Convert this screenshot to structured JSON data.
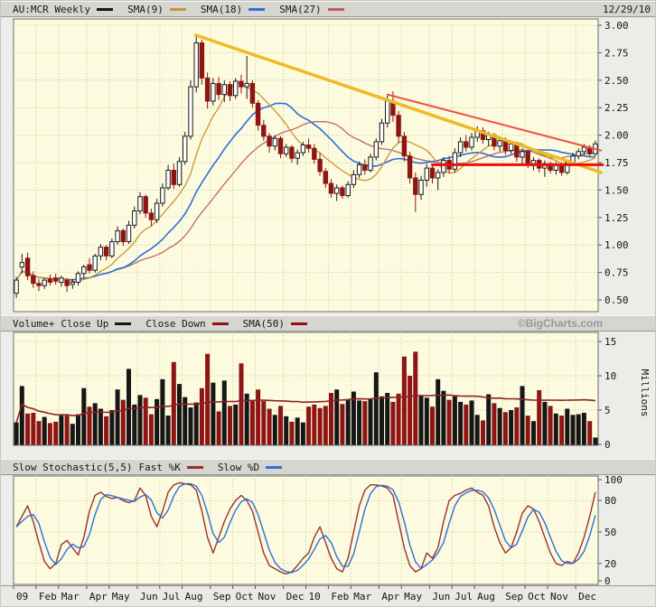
{
  "header": {
    "date": "12/29/10",
    "legend": [
      {
        "label": "AU:MCR Weekly",
        "color": "#161616"
      },
      {
        "label": "SMA(9)",
        "color": "#c89435"
      },
      {
        "label": "SMA(18)",
        "color": "#2e6fd8"
      },
      {
        "label": "SMA(27)",
        "color": "#c25a5a"
      }
    ]
  },
  "volume_header": {
    "legend": [
      {
        "label": "Volume+"
      },
      {
        "label": "Close Up",
        "color": "#161616"
      },
      {
        "label": "Close Down",
        "color": "#941111"
      },
      {
        "label": "SMA(50)",
        "color": "#941111"
      }
    ],
    "watermark": "©BigCharts.com"
  },
  "stoch_header": {
    "legend": [
      {
        "label": "Slow Stochastic(5,5)"
      },
      {
        "label": "Fast %K",
        "color": "#993030"
      },
      {
        "label": "Slow %D",
        "color": "#2e6fd8"
      }
    ]
  },
  "axes": {
    "price_ticks": [
      "3.00",
      "2.75",
      "2.50",
      "2.25",
      "2.00",
      "1.75",
      "1.50",
      "1.25",
      "1.00",
      "0.75",
      "0.50"
    ],
    "volume_ticks": [
      "15",
      "10",
      "5",
      "0"
    ],
    "volume_unit": "Millions",
    "stoch_ticks": [
      "100",
      "80",
      "50",
      "20",
      "0"
    ],
    "stoch_gridlines": [
      80,
      50,
      20
    ],
    "volume_gridlines": [
      15,
      10,
      5
    ],
    "months": [
      {
        "label": "09",
        "week": 0
      },
      {
        "label": "Feb",
        "week": 4
      },
      {
        "label": "Mar",
        "week": 8
      },
      {
        "label": "Apr",
        "week": 13
      },
      {
        "label": "May",
        "week": 17
      },
      {
        "label": "Jun",
        "week": 22
      },
      {
        "label": "Jul",
        "week": 26
      },
      {
        "label": "Aug",
        "week": 30
      },
      {
        "label": "Sep",
        "week": 35
      },
      {
        "label": "Oct",
        "week": 39
      },
      {
        "label": "Nov",
        "week": 43
      },
      {
        "label": "Dec",
        "week": 48
      },
      {
        "label": "10",
        "week": 52
      },
      {
        "label": "Feb",
        "week": 56
      },
      {
        "label": "Mar",
        "week": 60
      },
      {
        "label": "Apr",
        "week": 65
      },
      {
        "label": "May",
        "week": 69
      },
      {
        "label": "Jun",
        "week": 74
      },
      {
        "label": "Jul",
        "week": 78
      },
      {
        "label": "Aug",
        "week": 82
      },
      {
        "label": "Sep",
        "week": 87
      },
      {
        "label": "Oct",
        "week": 91
      },
      {
        "label": "Nov",
        "week": 95
      },
      {
        "label": "Dec",
        "week": 100
      }
    ]
  },
  "colors": {
    "plot_bg": "#fcfbdf",
    "grid": "#c8c896",
    "plot_border": "#6b6b66",
    "candle_up": "#ffffff",
    "candle_up_stroke": "#1a1a1a",
    "candle_down": "#8f1414",
    "sma9": "#c89435",
    "sma18": "#2e6fd8",
    "sma27": "#bc6868",
    "vol_up": "#161616",
    "vol_down": "#8f1414",
    "vol_sma": "#8b2323",
    "stoch_k": "#993030",
    "stoch_d": "#2e6fd8",
    "trend_primary": "#eeba25",
    "trend_secondary": "#ef5240",
    "support": "#ee1010"
  },
  "chart_data": [
    {
      "type": "candlestick",
      "title": "AU:MCR Weekly",
      "x_unit": "week",
      "x_range": [
        "Jan 2009",
        "Dec 2010"
      ],
      "ylim": [
        0.5,
        3.0
      ],
      "y_tick_step": 0.25,
      "legend": [
        "SMA(9)",
        "SMA(18)",
        "SMA(27)"
      ],
      "overlays_derived": "SMA(9), SMA(18), SMA(27) are simple moving averages of weekly closes",
      "ohlc": [
        [
          0.56,
          0.71,
          0.52,
          0.68
        ],
        [
          0.8,
          0.92,
          0.74,
          0.84
        ],
        [
          0.88,
          0.93,
          0.68,
          0.72
        ],
        [
          0.72,
          0.76,
          0.61,
          0.65
        ],
        [
          0.65,
          0.69,
          0.58,
          0.63
        ],
        [
          0.63,
          0.7,
          0.6,
          0.68
        ],
        [
          0.69,
          0.73,
          0.63,
          0.66
        ],
        [
          0.7,
          0.74,
          0.64,
          0.67
        ],
        [
          0.66,
          0.72,
          0.62,
          0.7
        ],
        [
          0.68,
          0.7,
          0.57,
          0.63
        ],
        [
          0.64,
          0.69,
          0.6,
          0.66
        ],
        [
          0.66,
          0.76,
          0.63,
          0.74
        ],
        [
          0.74,
          0.82,
          0.7,
          0.8
        ],
        [
          0.82,
          0.88,
          0.74,
          0.77
        ],
        [
          0.77,
          0.92,
          0.75,
          0.9
        ],
        [
          0.9,
          1.01,
          0.86,
          0.98
        ],
        [
          0.98,
          1.0,
          0.86,
          0.9
        ],
        [
          0.9,
          1.06,
          0.88,
          1.03
        ],
        [
          1.03,
          1.17,
          1.0,
          1.13
        ],
        [
          1.13,
          1.15,
          0.99,
          1.03
        ],
        [
          1.03,
          1.22,
          1.01,
          1.18
        ],
        [
          1.18,
          1.35,
          1.15,
          1.31
        ],
        [
          1.31,
          1.48,
          1.28,
          1.44
        ],
        [
          1.44,
          1.46,
          1.25,
          1.29
        ],
        [
          1.29,
          1.33,
          1.17,
          1.23
        ],
        [
          1.23,
          1.42,
          1.2,
          1.38
        ],
        [
          1.38,
          1.56,
          1.35,
          1.52
        ],
        [
          1.52,
          1.73,
          1.5,
          1.68
        ],
        [
          1.68,
          1.74,
          1.51,
          1.55
        ],
        [
          1.55,
          1.8,
          1.53,
          1.76
        ],
        [
          1.76,
          2.03,
          1.73,
          1.99
        ],
        [
          1.99,
          2.5,
          1.96,
          2.44
        ],
        [
          2.44,
          2.91,
          2.39,
          2.84
        ],
        [
          2.84,
          2.87,
          2.46,
          2.52
        ],
        [
          2.52,
          2.57,
          2.24,
          2.31
        ],
        [
          2.31,
          2.52,
          2.27,
          2.47
        ],
        [
          2.47,
          2.53,
          2.32,
          2.37
        ],
        [
          2.37,
          2.5,
          2.3,
          2.46
        ],
        [
          2.46,
          2.49,
          2.31,
          2.36
        ],
        [
          2.36,
          2.52,
          2.33,
          2.49
        ],
        [
          2.49,
          2.55,
          2.38,
          2.44
        ],
        [
          2.44,
          2.72,
          2.33,
          2.47
        ],
        [
          2.47,
          2.5,
          2.25,
          2.29
        ],
        [
          2.29,
          2.32,
          2.04,
          2.09
        ],
        [
          2.09,
          2.14,
          1.95,
          1.99
        ],
        [
          1.99,
          2.02,
          1.84,
          1.9
        ],
        [
          1.9,
          2.0,
          1.86,
          1.97
        ],
        [
          1.97,
          1.99,
          1.79,
          1.83
        ],
        [
          1.83,
          1.92,
          1.8,
          1.89
        ],
        [
          1.89,
          1.91,
          1.75,
          1.79
        ],
        [
          1.79,
          1.87,
          1.73,
          1.84
        ],
        [
          1.84,
          1.94,
          1.81,
          1.91
        ],
        [
          1.91,
          1.97,
          1.84,
          1.88
        ],
        [
          1.88,
          1.92,
          1.74,
          1.78
        ],
        [
          1.78,
          1.84,
          1.63,
          1.67
        ],
        [
          1.67,
          1.7,
          1.52,
          1.56
        ],
        [
          1.56,
          1.6,
          1.43,
          1.47
        ],
        [
          1.47,
          1.55,
          1.4,
          1.52
        ],
        [
          1.52,
          1.54,
          1.42,
          1.45
        ],
        [
          1.45,
          1.58,
          1.43,
          1.55
        ],
        [
          1.55,
          1.68,
          1.52,
          1.64
        ],
        [
          1.64,
          1.76,
          1.61,
          1.73
        ],
        [
          1.73,
          1.78,
          1.64,
          1.68
        ],
        [
          1.68,
          1.83,
          1.66,
          1.8
        ],
        [
          1.8,
          1.97,
          1.77,
          1.94
        ],
        [
          1.94,
          2.15,
          1.91,
          2.11
        ],
        [
          2.11,
          2.36,
          2.07,
          2.31
        ],
        [
          2.31,
          2.4,
          2.12,
          2.18
        ],
        [
          2.18,
          2.22,
          1.93,
          1.99
        ],
        [
          1.99,
          2.03,
          1.76,
          1.81
        ],
        [
          1.81,
          1.85,
          1.56,
          1.61
        ],
        [
          1.61,
          1.66,
          1.3,
          1.46
        ],
        [
          1.46,
          1.63,
          1.41,
          1.59
        ],
        [
          1.59,
          1.74,
          1.53,
          1.7
        ],
        [
          1.7,
          1.73,
          1.56,
          1.61
        ],
        [
          1.61,
          1.69,
          1.5,
          1.66
        ],
        [
          1.66,
          1.8,
          1.62,
          1.77
        ],
        [
          1.77,
          1.81,
          1.65,
          1.69
        ],
        [
          1.69,
          1.88,
          1.66,
          1.84
        ],
        [
          1.84,
          1.98,
          1.8,
          1.94
        ],
        [
          1.94,
          2.0,
          1.85,
          1.89
        ],
        [
          1.89,
          2.02,
          1.86,
          1.98
        ],
        [
          1.98,
          2.08,
          1.94,
          2.04
        ],
        [
          2.04,
          2.07,
          1.92,
          1.96
        ],
        [
          1.96,
          2.03,
          1.9,
          2.0
        ],
        [
          2.0,
          2.02,
          1.86,
          1.9
        ],
        [
          1.9,
          1.99,
          1.85,
          1.95
        ],
        [
          1.95,
          1.98,
          1.82,
          1.86
        ],
        [
          1.86,
          1.95,
          1.83,
          1.92
        ],
        [
          1.92,
          1.94,
          1.76,
          1.8
        ],
        [
          1.8,
          1.88,
          1.74,
          1.85
        ],
        [
          1.85,
          1.87,
          1.7,
          1.74
        ],
        [
          1.74,
          1.8,
          1.68,
          1.77
        ],
        [
          1.77,
          1.79,
          1.66,
          1.7
        ],
        [
          1.7,
          1.77,
          1.62,
          1.74
        ],
        [
          1.74,
          1.76,
          1.65,
          1.68
        ],
        [
          1.68,
          1.76,
          1.64,
          1.73
        ],
        [
          1.73,
          1.75,
          1.63,
          1.66
        ],
        [
          1.66,
          1.78,
          1.64,
          1.75
        ],
        [
          1.75,
          1.84,
          1.72,
          1.81
        ],
        [
          1.81,
          1.88,
          1.78,
          1.85
        ],
        [
          1.85,
          1.92,
          1.82,
          1.89
        ],
        [
          1.89,
          1.91,
          1.8,
          1.83
        ],
        [
          1.83,
          1.95,
          1.81,
          1.92
        ]
      ],
      "trendlines": [
        {
          "name": "primary-downtrend",
          "x1_week": 31.9,
          "price1": 2.91,
          "x2_week": 104.0,
          "price2": 1.66,
          "color": "#eeba25",
          "width": 3.5
        },
        {
          "name": "secondary-downtrend",
          "x1_week": 66.0,
          "price1": 2.37,
          "x2_week": 104.0,
          "price2": 1.86,
          "color": "#ef5240",
          "width": 2
        },
        {
          "name": "horizontal-support",
          "x1_week": 74.0,
          "price1": 1.73,
          "x2_week": 104.3,
          "price2": 1.73,
          "color": "#ee1010",
          "width": 3
        }
      ]
    },
    {
      "type": "bar",
      "title": "Volume",
      "ylim": [
        0,
        15
      ],
      "unit": "Millions",
      "color_rule": "black when weekly close >= open (Close Up), dark red when close < open (Close Down)",
      "overlay_derived": "SMA(50) of volume",
      "values": [
        3.2,
        8.5,
        4.5,
        4.6,
        3.4,
        4.0,
        3.1,
        3.3,
        4.2,
        4.3,
        3.0,
        4.4,
        8.2,
        5.5,
        6.0,
        5.2,
        4.1,
        5.0,
        8.0,
        6.5,
        11.0,
        5.8,
        7.2,
        6.8,
        4.4,
        6.6,
        9.5,
        4.2,
        12.0,
        8.8,
        6.9,
        5.4,
        6.1,
        8.2,
        13.2,
        9.0,
        4.8,
        9.3,
        5.6,
        5.8,
        11.8,
        7.4,
        6.4,
        8.0,
        6.3,
        5.2,
        4.3,
        5.6,
        4.1,
        3.3,
        3.9,
        3.2,
        5.5,
        5.8,
        5.3,
        5.6,
        7.5,
        8.0,
        5.9,
        6.5,
        7.7,
        6.4,
        6.3,
        6.6,
        10.5,
        7.0,
        7.5,
        6.2,
        7.4,
        12.8,
        10.0,
        13.5,
        7.2,
        6.8,
        5.5,
        9.5,
        7.8,
        6.5,
        7.0,
        6.2,
        5.8,
        6.4,
        4.3,
        3.5,
        7.3,
        6.0,
        5.3,
        4.7,
        5.0,
        5.4,
        8.5,
        4.2,
        3.4,
        7.9,
        6.2,
        5.6,
        4.5,
        4.2,
        5.2,
        4.3,
        4.4,
        4.6,
        3.4,
        1.0
      ]
    },
    {
      "type": "line",
      "title": "Slow Stochastic(5,5)",
      "ylim": [
        0,
        100
      ],
      "gridlines": [
        20,
        50,
        80
      ],
      "series": [
        {
          "name": "Fast %K",
          "values": [
            55,
            65,
            75,
            60,
            40,
            22,
            15,
            20,
            38,
            42,
            35,
            28,
            45,
            70,
            85,
            88,
            84,
            82,
            83,
            80,
            78,
            80,
            92,
            85,
            65,
            55,
            70,
            88,
            95,
            97,
            96,
            95,
            90,
            70,
            45,
            30,
            45,
            60,
            72,
            80,
            85,
            80,
            70,
            50,
            30,
            18,
            15,
            12,
            10,
            12,
            18,
            25,
            30,
            45,
            55,
            40,
            25,
            15,
            12,
            25,
            50,
            75,
            90,
            95,
            95,
            94,
            92,
            85,
            60,
            35,
            18,
            12,
            15,
            30,
            25,
            35,
            60,
            80,
            85,
            87,
            90,
            92,
            88,
            85,
            75,
            55,
            40,
            30,
            35,
            50,
            68,
            75,
            72,
            60,
            45,
            30,
            20,
            18,
            22,
            20,
            30,
            45,
            65,
            88
          ]
        },
        {
          "name": "Slow %D",
          "derived": "3-week SMA of Fast %K"
        }
      ]
    }
  ]
}
